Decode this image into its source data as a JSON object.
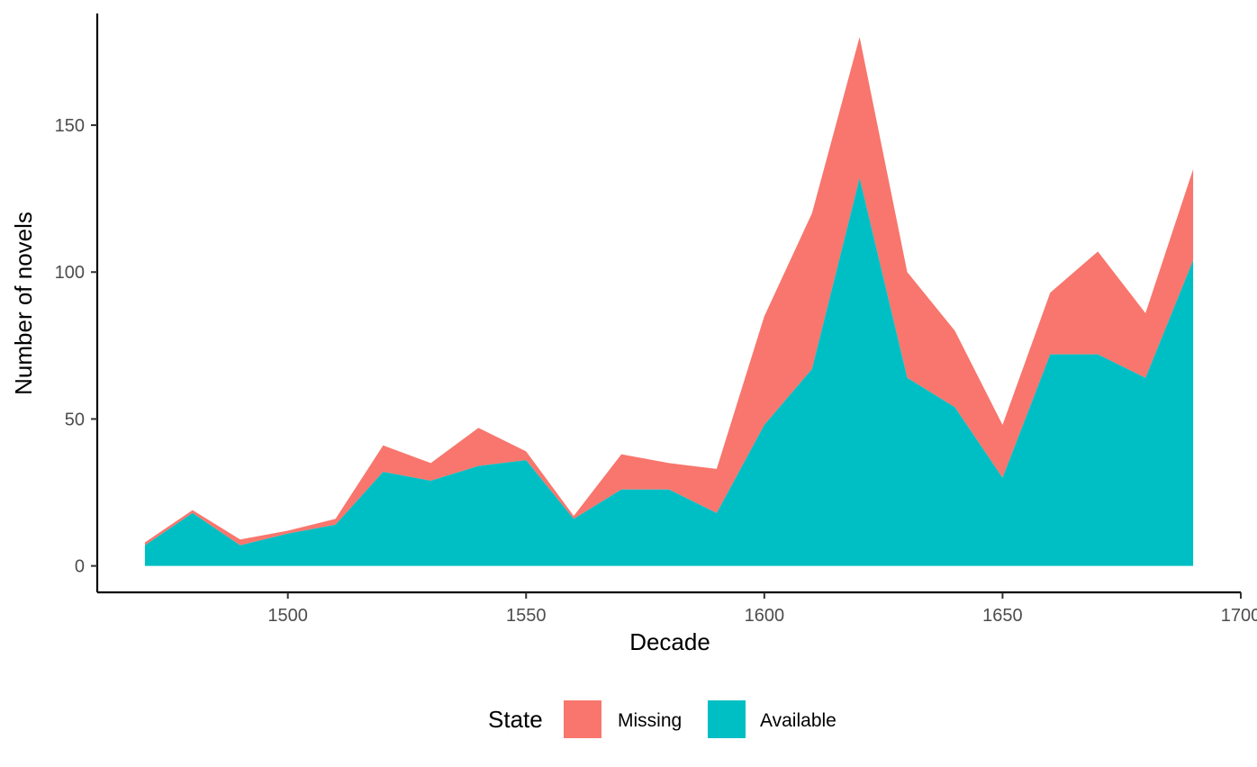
{
  "chart_data": {
    "type": "area",
    "stacked": true,
    "title": "",
    "xlabel": "Decade",
    "ylabel": "Number of novels",
    "x": [
      1470,
      1480,
      1490,
      1500,
      1510,
      1520,
      1530,
      1540,
      1550,
      1560,
      1570,
      1580,
      1590,
      1600,
      1610,
      1620,
      1630,
      1640,
      1650,
      1660,
      1670,
      1680,
      1690
    ],
    "series": [
      {
        "name": "Available",
        "color": "#00BFC4",
        "values": [
          7,
          18,
          7,
          11,
          14,
          32,
          29,
          34,
          36,
          16,
          26,
          26,
          18,
          48,
          67,
          132,
          64,
          54,
          30,
          72,
          72,
          64,
          104
        ]
      },
      {
        "name": "Missing",
        "color": "#F8766D",
        "values": [
          1,
          1,
          2,
          1,
          2,
          9,
          6,
          13,
          3,
          1,
          12,
          9,
          15,
          37,
          53,
          48,
          36,
          26,
          18,
          21,
          35,
          22,
          31
        ]
      }
    ],
    "xlim": [
      1460,
      1700
    ],
    "ylim": [
      -9,
      188
    ],
    "xticks": [
      1500,
      1550,
      1600,
      1650,
      1700
    ],
    "yticks": [
      0,
      50,
      100,
      150
    ],
    "xtick_labels": [
      "1500",
      "1550",
      "1600",
      "1650",
      "1700"
    ],
    "ytick_labels": [
      "0",
      "50",
      "100",
      "150"
    ],
    "grid": false,
    "legend": {
      "position": "bottom",
      "title": "State",
      "entries": [
        {
          "label": "Missing",
          "color": "#F8766D"
        },
        {
          "label": "Available",
          "color": "#00BFC4"
        }
      ]
    }
  }
}
